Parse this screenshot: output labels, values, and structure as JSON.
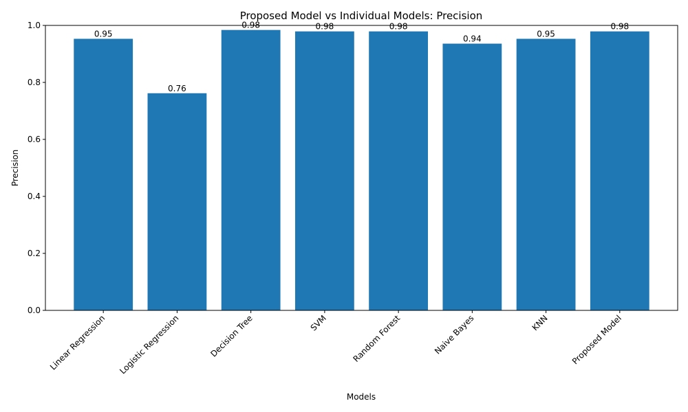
{
  "chart_data": {
    "type": "bar",
    "title": "Proposed Model vs Individual Models: Precision",
    "xlabel": "Models",
    "ylabel": "Precision",
    "ylim": [
      0,
      1.0
    ],
    "yticks": [
      "0.0",
      "0.2",
      "0.4",
      "0.6",
      "0.8",
      "1.0"
    ],
    "categories": [
      "Linear Regression",
      "Logistic Regression",
      "Decision Tree",
      "SVM",
      "Random Forest",
      "Naive Bayes",
      "KNN",
      "Proposed Model"
    ],
    "values": [
      0.953,
      0.762,
      0.984,
      0.979,
      0.979,
      0.936,
      0.953,
      0.979
    ],
    "value_labels": [
      "0.95",
      "0.76",
      "0.98",
      "0.98",
      "0.98",
      "0.94",
      "0.95",
      "0.98"
    ],
    "bar_color": "#1f77b4",
    "grid": false,
    "legend": "none"
  }
}
